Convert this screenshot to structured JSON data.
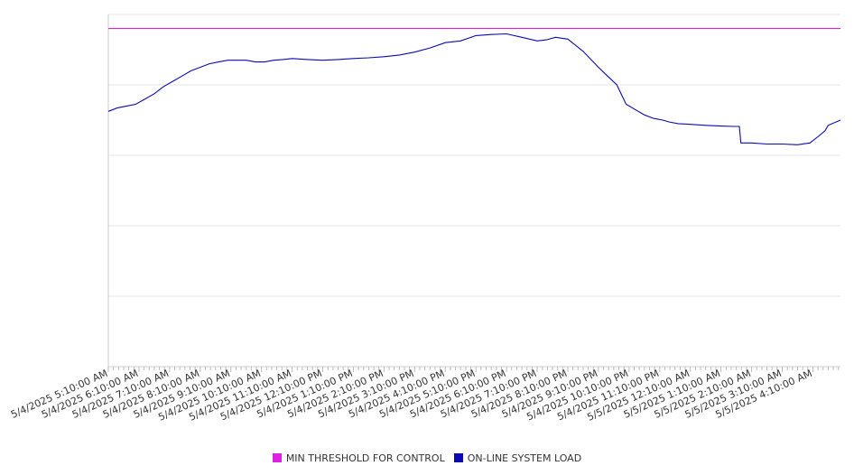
{
  "chart_data": {
    "type": "line",
    "title": "",
    "xlabel": "",
    "ylabel": "",
    "grid": true,
    "legend_position": "bottom",
    "x_tick_labels": [
      "5/4/2025 5:10:00 AM",
      "5/4/2025 6:10:00 AM",
      "5/4/2025 7:10:00 AM",
      "5/4/2025 8:10:00 AM",
      "5/4/2025 9:10:00 AM",
      "5/4/2025 10:10:00 AM",
      "5/4/2025 11:10:00 AM",
      "5/4/2025 12:10:00 PM",
      "5/4/2025 1:10:00 PM",
      "5/4/2025 2:10:00 PM",
      "5/4/2025 3:10:00 PM",
      "5/4/2025 4:10:00 PM",
      "5/4/2025 5:10:00 PM",
      "5/4/2025 6:10:00 PM",
      "5/4/2025 7:10:00 PM",
      "5/4/2025 8:10:00 PM",
      "5/4/2025 9:10:00 PM",
      "5/4/2025 10:10:00 PM",
      "5/4/2025 11:10:00 PM",
      "5/5/2025 12:10:00 AM",
      "5/5/2025 1:10:00 AM",
      "5/5/2025 2:10:00 AM",
      "5/5/2025 3:10:00 AM",
      "5/5/2025 4:10:00 AM"
    ],
    "y_gridlines": 5,
    "x_hours_span": 23.9,
    "series": [
      {
        "name": "MIN THRESHOLD FOR CONTROL",
        "color": "#e020e0",
        "x": [
          0,
          23.9
        ],
        "y": [
          0.96,
          0.96
        ]
      },
      {
        "name": "ON-LINE SYSTEM LOAD",
        "color": "#0a0ab4",
        "x": [
          0,
          0.3,
          0.6,
          0.9,
          1.2,
          1.5,
          1.8,
          2.1,
          2.4,
          2.7,
          3.0,
          3.3,
          3.6,
          3.9,
          4.2,
          4.5,
          4.8,
          5.1,
          5.4,
          5.7,
          6.0,
          6.5,
          7.0,
          7.5,
          8.0,
          8.5,
          9.0,
          9.5,
          10.0,
          10.5,
          11.0,
          11.5,
          12.0,
          12.5,
          13.0,
          13.5,
          14.0,
          14.3,
          14.6,
          15.0,
          15.5,
          16.0,
          16.3,
          16.6,
          16.9,
          17.2,
          17.5,
          17.8,
          18.1,
          18.3,
          18.6,
          19.0,
          19.5,
          20.0,
          20.4,
          20.6,
          20.65,
          21.0,
          21.5,
          22.0,
          22.5,
          22.9,
          23.2,
          23.4,
          23.5,
          23.9
        ],
        "y": [
          0.725,
          0.735,
          0.74,
          0.745,
          0.76,
          0.775,
          0.795,
          0.81,
          0.825,
          0.84,
          0.85,
          0.86,
          0.865,
          0.87,
          0.87,
          0.87,
          0.865,
          0.865,
          0.87,
          0.872,
          0.875,
          0.872,
          0.87,
          0.872,
          0.875,
          0.877,
          0.88,
          0.885,
          0.893,
          0.905,
          0.92,
          0.925,
          0.94,
          0.943,
          0.945,
          0.935,
          0.925,
          0.928,
          0.935,
          0.93,
          0.895,
          0.85,
          0.825,
          0.8,
          0.745,
          0.73,
          0.715,
          0.705,
          0.7,
          0.695,
          0.69,
          0.688,
          0.685,
          0.683,
          0.682,
          0.682,
          0.635,
          0.635,
          0.632,
          0.632,
          0.63,
          0.635,
          0.655,
          0.67,
          0.685,
          0.7
        ]
      }
    ]
  }
}
